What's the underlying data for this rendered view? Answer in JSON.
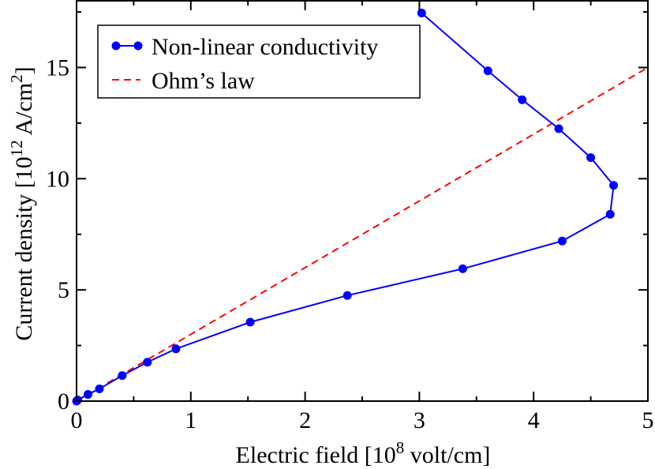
{
  "chart_data": {
    "type": "line",
    "title": "",
    "xlabel": "Electric field [10",
    "xlabel_sup": "8",
    "xlabel_tail": " volt/cm]",
    "ylabel": "Current density [10",
    "ylabel_sup1": "12",
    "ylabel_mid": " A/cm",
    "ylabel_sup2": "2",
    "ylabel_tail": "]",
    "xlim": [
      0,
      5
    ],
    "ylim": [
      0,
      18
    ],
    "x_ticks": [
      0,
      1,
      2,
      3,
      4,
      5
    ],
    "y_ticks": [
      0,
      5,
      10,
      15
    ],
    "legend_position": "top-left",
    "colors": {
      "series1": "#0000ff",
      "series2": "#ff0000"
    },
    "series": [
      {
        "name": "Non-linear conductivity",
        "style": "line-markers",
        "x": [
          0,
          0.01,
          0.1,
          0.2,
          0.4,
          0.62,
          0.87,
          1.52,
          2.37,
          3.38,
          4.25,
          4.67,
          4.7,
          4.5,
          4.22,
          3.9,
          3.6,
          3.02
        ],
        "y": [
          0,
          0.05,
          0.3,
          0.55,
          1.15,
          1.75,
          2.35,
          3.55,
          4.75,
          5.95,
          7.2,
          8.4,
          9.7,
          10.95,
          12.25,
          13.55,
          14.85,
          17.45
        ]
      },
      {
        "name": "Ohm’s law",
        "style": "dashed",
        "x": [
          0,
          5
        ],
        "y": [
          0,
          15
        ]
      }
    ]
  }
}
